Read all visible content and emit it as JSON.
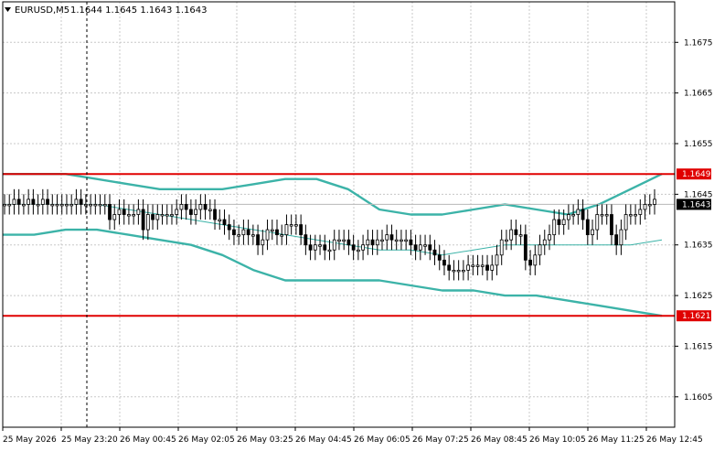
{
  "header": {
    "symbol": "EURUSD,M5",
    "ohlc": "1.1644 1.1645 1.1643 1.1643"
  },
  "colors": {
    "background": "#ffffff",
    "grid": "#c8c8c8",
    "candle": "#000000",
    "bollinger_bands": "#3cb3a8",
    "level_line": "#e00000",
    "level_label_bg": "#e00000",
    "bid_label_bg": "#000000"
  },
  "chart_data": {
    "type": "candlestick",
    "symbol": "EURUSD",
    "timeframe": "M5",
    "grid": true,
    "ylim": [
      1.1599,
      1.1683
    ],
    "y_ticks": [
      "1.1675",
      "1.1665",
      "1.1655",
      "1.1645",
      "1.1635",
      "1.1625",
      "1.1615",
      "1.1605"
    ],
    "x_ticks": [
      "25 May 2026",
      "25 May 23:20",
      "26 May 00:45",
      "26 May 02:05",
      "26 May 03:25",
      "26 May 04:45",
      "26 May 06:05",
      "26 May 07:25",
      "26 May 08:45",
      "26 May 10:05",
      "26 May 11:25",
      "26 May 12:45"
    ],
    "current_price": "1.1643",
    "levels": [
      {
        "price": "1.1649"
      },
      {
        "price": "1.1621"
      }
    ],
    "candles_close": [
      1.1643,
      1.1643,
      1.1644,
      1.1643,
      1.1643,
      1.1644,
      1.1643,
      1.1643,
      1.1644,
      1.1643,
      1.1643,
      1.1643,
      1.1643,
      1.1643,
      1.1643,
      1.1644,
      1.1643,
      1.1643,
      1.1643,
      1.1643,
      1.1643,
      1.1643,
      1.164,
      1.1641,
      1.1642,
      1.1641,
      1.1641,
      1.1641,
      1.1642,
      1.1638,
      1.1641,
      1.164,
      1.1641,
      1.1641,
      1.1641,
      1.1641,
      1.1642,
      1.1643,
      1.1642,
      1.1641,
      1.1642,
      1.1643,
      1.1642,
      1.1642,
      1.164,
      1.164,
      1.1639,
      1.1638,
      1.1637,
      1.1637,
      1.1638,
      1.1637,
      1.1637,
      1.1635,
      1.1636,
      1.1638,
      1.1638,
      1.1637,
      1.1637,
      1.1639,
      1.1639,
      1.1639,
      1.1637,
      1.1635,
      1.1634,
      1.1635,
      1.1635,
      1.1634,
      1.1634,
      1.1636,
      1.1636,
      1.1636,
      1.1635,
      1.1634,
      1.1634,
      1.1635,
      1.1636,
      1.1635,
      1.1636,
      1.1636,
      1.1637,
      1.1636,
      1.1636,
      1.1636,
      1.1636,
      1.1635,
      1.1634,
      1.1635,
      1.1635,
      1.1634,
      1.1633,
      1.1632,
      1.1631,
      1.163,
      1.163,
      1.163,
      1.163,
      1.1631,
      1.1631,
      1.1631,
      1.1631,
      1.163,
      1.1631,
      1.1633,
      1.1636,
      1.1636,
      1.1638,
      1.1637,
      1.1637,
      1.1632,
      1.1631,
      1.1633,
      1.1635,
      1.1636,
      1.1637,
      1.164,
      1.1639,
      1.164,
      1.1641,
      1.1641,
      1.1642,
      1.164,
      1.1637,
      1.1638,
      1.1641,
      1.1641,
      1.1641,
      1.1637,
      1.1635,
      1.1638,
      1.1641,
      1.1641,
      1.1641,
      1.1642,
      1.1643,
      1.1643,
      1.1644
    ],
    "bollinger": {
      "upper": [
        1.1649,
        1.1649,
        1.1649,
        1.1648,
        1.1647,
        1.1646,
        1.1646,
        1.1646,
        1.1647,
        1.1648,
        1.1648,
        1.1646,
        1.1642,
        1.1641,
        1.1641,
        1.1642,
        1.1643,
        1.1642,
        1.1641,
        1.1643,
        1.1646,
        1.1649
      ],
      "middle": [
        1.1643,
        1.1643,
        1.1643,
        1.1643,
        1.1642,
        1.1641,
        1.164,
        1.1639,
        1.1638,
        1.1637,
        1.1636,
        1.1635,
        1.1634,
        1.1634,
        1.1633,
        1.1634,
        1.1635,
        1.1635,
        1.1635,
        1.1635,
        1.1635,
        1.1636
      ],
      "lower": [
        1.1637,
        1.1637,
        1.1638,
        1.1638,
        1.1637,
        1.1636,
        1.1635,
        1.1633,
        1.163,
        1.1628,
        1.1628,
        1.1628,
        1.1628,
        1.1627,
        1.1626,
        1.1626,
        1.1625,
        1.1625,
        1.1624,
        1.1623,
        1.1622,
        1.1621
      ]
    }
  }
}
